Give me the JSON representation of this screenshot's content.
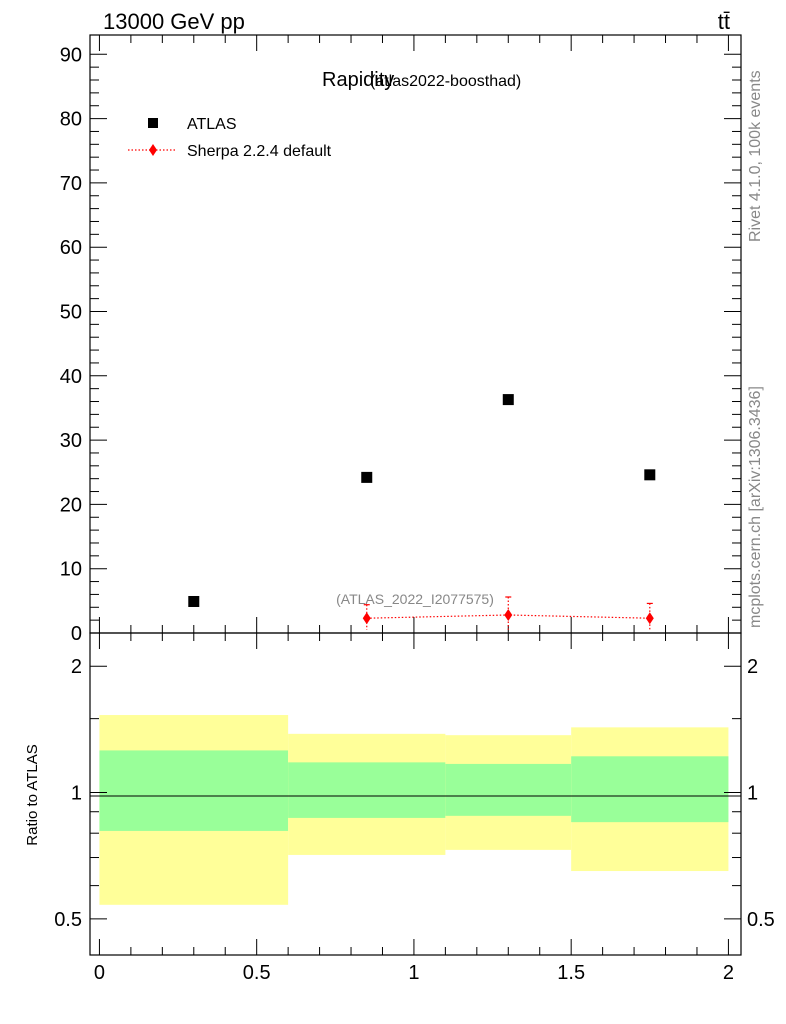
{
  "header": {
    "energy_label": "13000 GeV pp",
    "process_label": "tt̄"
  },
  "side_labels": {
    "rivet": "Rivet 4.1.0,  100k events",
    "site": "mcplots.cern.ch [arXiv:1306.3436]"
  },
  "colors": {
    "data_marker": "#000000",
    "mc_line": "#ff0000",
    "band_inner": "#99ff99",
    "band_outer": "#ffff99",
    "watermark": "#888888"
  },
  "chart_data": [
    {
      "type": "scatter",
      "title": "Rapidity",
      "subtitle": "(atlas2022-boosthad)",
      "watermark": "(ATLAS_2022_I2077575)",
      "xlabel": "",
      "ylabel": "",
      "xlim": [
        -0.03,
        2.04
      ],
      "ylim": [
        0,
        93
      ],
      "yticks": [
        0,
        10,
        20,
        30,
        40,
        50,
        60,
        70,
        80,
        90
      ],
      "legend_position": "top-left",
      "series": [
        {
          "name": "ATLAS",
          "marker": "square",
          "x": [
            0.3,
            0.85,
            1.3,
            1.75
          ],
          "y": [
            4.9,
            24.2,
            36.3,
            24.6
          ]
        },
        {
          "name": "Sherpa 2.2.4 default",
          "marker": "diamond",
          "line": "dotted",
          "x": [
            0.85,
            1.3,
            1.75
          ],
          "y": [
            2.3,
            2.8,
            2.3
          ],
          "yerr_up": [
            4.4,
            5.6,
            4.6
          ],
          "yerr_down": [
            0.5,
            0.5,
            0.5
          ]
        }
      ]
    },
    {
      "type": "area",
      "ylabel": "Ratio to ATLAS",
      "xlim": [
        -0.03,
        2.04
      ],
      "ylim": [
        0.41,
        2.4
      ],
      "yscale": "log",
      "xticks": [
        0,
        0.5,
        1,
        1.5,
        2
      ],
      "xtick_labels": [
        "0",
        "0.5",
        "1",
        "1.5",
        "2"
      ],
      "yticks": [
        0.5,
        1,
        2
      ],
      "ytick_labels": [
        "0.5",
        "1",
        "2"
      ],
      "reference_line": 1,
      "bins": [
        {
          "lo": 0.0,
          "hi": 0.6,
          "inner": [
            0.81,
            1.26
          ],
          "outer": [
            0.54,
            1.53
          ]
        },
        {
          "lo": 0.6,
          "hi": 1.1,
          "inner": [
            0.87,
            1.18
          ],
          "outer": [
            0.71,
            1.38
          ]
        },
        {
          "lo": 1.1,
          "hi": 1.5,
          "inner": [
            0.88,
            1.17
          ],
          "outer": [
            0.73,
            1.37
          ]
        },
        {
          "lo": 1.5,
          "hi": 2.0,
          "inner": [
            0.85,
            1.22
          ],
          "outer": [
            0.65,
            1.43
          ]
        }
      ]
    }
  ]
}
